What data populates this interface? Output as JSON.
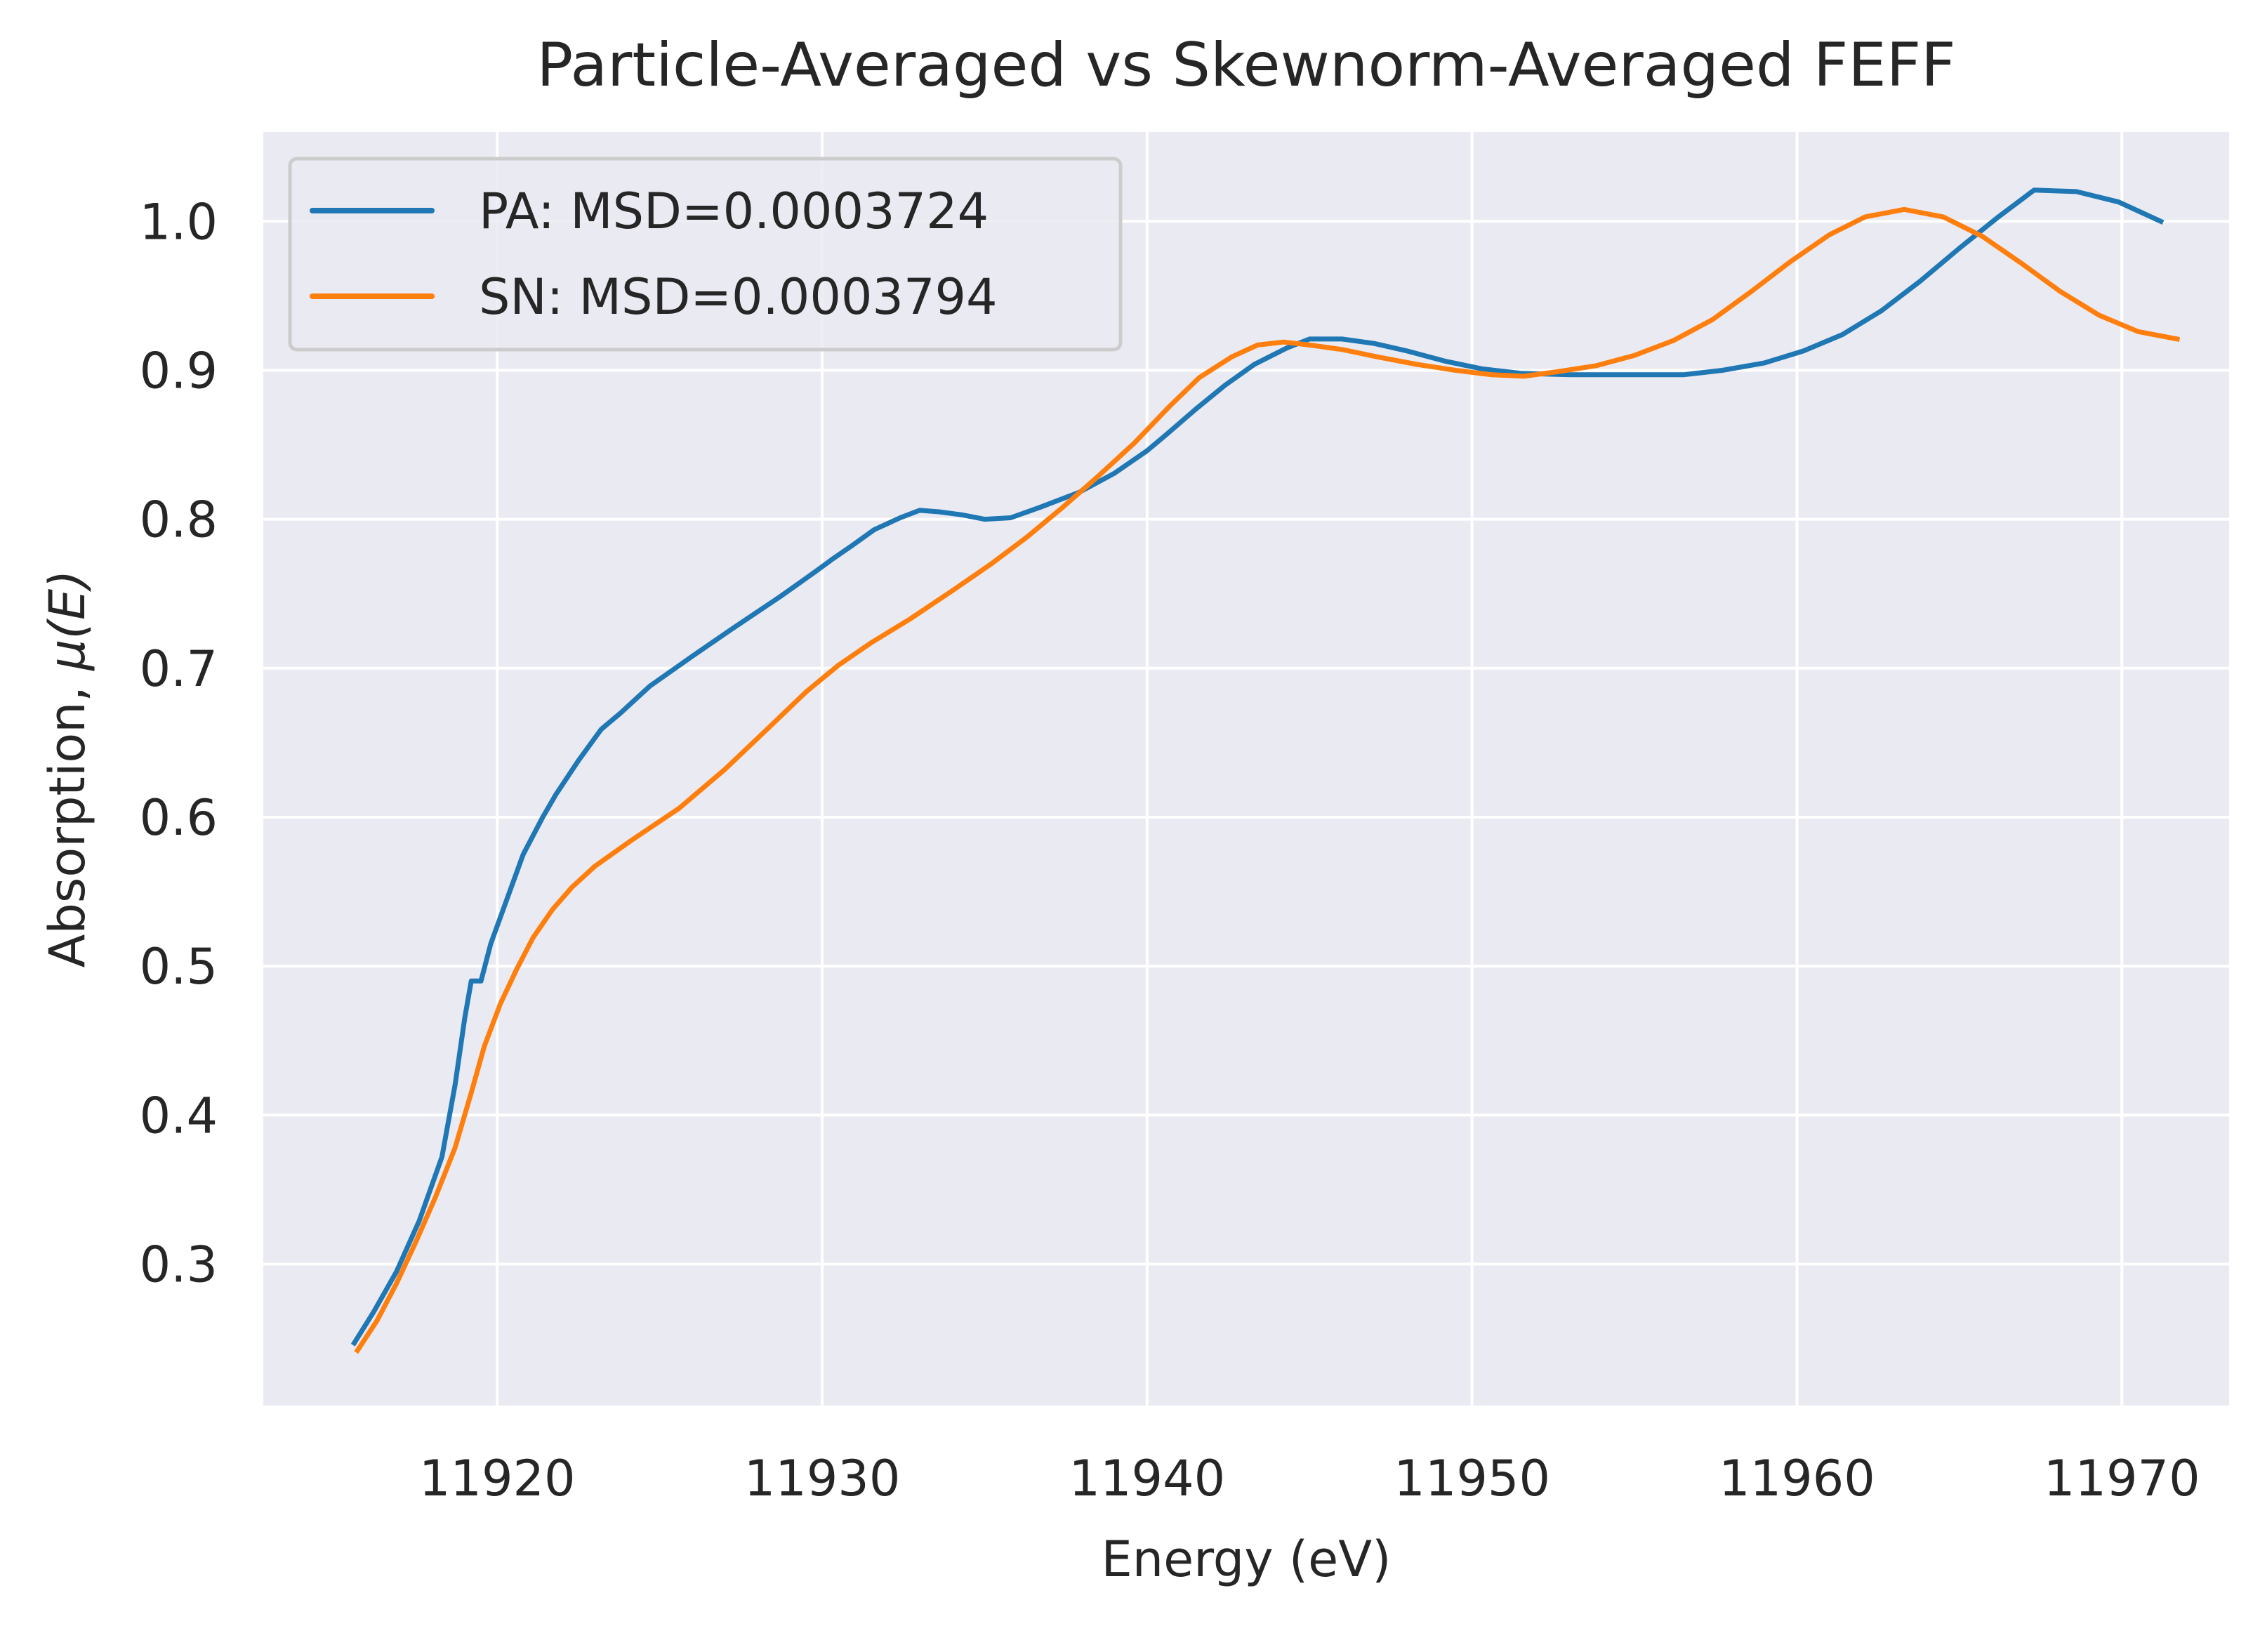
{
  "chart_data": {
    "type": "line",
    "title": "Particle-Averaged vs Skewnorm-Averaged FEFF",
    "xlabel": "Energy (eV)",
    "ylabel_prefix": "Absorption, ",
    "ylabel_math": "μ(E)",
    "xlim": [
      11912.8,
      11973.3
    ],
    "ylim": [
      0.205,
      1.06
    ],
    "xticks": [
      11920,
      11930,
      11940,
      11950,
      11960,
      11970
    ],
    "xtick_labels": [
      "11920",
      "11930",
      "11940",
      "11950",
      "11960",
      "11970"
    ],
    "yticks": [
      0.3,
      0.4,
      0.5,
      0.6,
      0.7,
      0.8,
      0.9,
      1.0
    ],
    "ytick_labels": [
      "0.3",
      "0.4",
      "0.5",
      "0.6",
      "0.7",
      "0.8",
      "0.9",
      "1.0"
    ],
    "grid": true,
    "legend_position": "upper-left",
    "series": [
      {
        "name": "PA: MSD=0.0003724",
        "color": "#1f77b4",
        "points": [
          [
            11915.6,
            0.247
          ],
          [
            11916.2,
            0.268
          ],
          [
            11916.9,
            0.295
          ],
          [
            11917.6,
            0.329
          ],
          [
            11918.3,
            0.372
          ],
          [
            11918.7,
            0.42
          ],
          [
            11919.0,
            0.465
          ],
          [
            11919.2,
            0.49
          ],
          [
            11919.5,
            0.49
          ],
          [
            11919.8,
            0.515
          ],
          [
            11920.3,
            0.545
          ],
          [
            11920.8,
            0.575
          ],
          [
            11921.4,
            0.6
          ],
          [
            11921.8,
            0.615
          ],
          [
            11922.5,
            0.638
          ],
          [
            11923.2,
            0.659
          ],
          [
            11923.8,
            0.67
          ],
          [
            11924.7,
            0.688
          ],
          [
            11926.0,
            0.708
          ],
          [
            11927.2,
            0.726
          ],
          [
            11928.7,
            0.748
          ],
          [
            11929.8,
            0.765
          ],
          [
            11930.3,
            0.773
          ],
          [
            11930.9,
            0.782
          ],
          [
            11931.6,
            0.793
          ],
          [
            11932.4,
            0.801
          ],
          [
            11933.0,
            0.806
          ],
          [
            11933.6,
            0.805
          ],
          [
            11934.3,
            0.803
          ],
          [
            11935.0,
            0.8
          ],
          [
            11935.8,
            0.801
          ],
          [
            11936.7,
            0.808
          ],
          [
            11937.9,
            0.818
          ],
          [
            11939.0,
            0.831
          ],
          [
            11940.0,
            0.846
          ],
          [
            11940.6,
            0.857
          ],
          [
            11941.5,
            0.874
          ],
          [
            11942.4,
            0.89
          ],
          [
            11943.3,
            0.904
          ],
          [
            11944.3,
            0.915
          ],
          [
            11945.0,
            0.921
          ],
          [
            11946.0,
            0.921
          ],
          [
            11947.0,
            0.918
          ],
          [
            11948.0,
            0.913
          ],
          [
            11949.2,
            0.906
          ],
          [
            11950.3,
            0.901
          ],
          [
            11951.5,
            0.898
          ],
          [
            11953.0,
            0.897
          ],
          [
            11955.0,
            0.897
          ],
          [
            11956.5,
            0.897
          ],
          [
            11957.7,
            0.9
          ],
          [
            11959.0,
            0.905
          ],
          [
            11960.2,
            0.913
          ],
          [
            11961.4,
            0.924
          ],
          [
            11962.6,
            0.94
          ],
          [
            11963.8,
            0.96
          ],
          [
            11965.0,
            0.982
          ],
          [
            11966.2,
            1.003
          ],
          [
            11967.3,
            1.021
          ],
          [
            11968.6,
            1.02
          ],
          [
            11969.9,
            1.013
          ],
          [
            11971.2,
            1.0
          ]
        ]
      },
      {
        "name": "SN: MSD=0.0003794",
        "color": "#ff7f0e",
        "points": [
          [
            11915.7,
            0.242
          ],
          [
            11916.3,
            0.262
          ],
          [
            11916.9,
            0.287
          ],
          [
            11917.5,
            0.315
          ],
          [
            11918.1,
            0.345
          ],
          [
            11918.7,
            0.378
          ],
          [
            11919.2,
            0.415
          ],
          [
            11919.6,
            0.446
          ],
          [
            11920.1,
            0.475
          ],
          [
            11920.6,
            0.498
          ],
          [
            11921.1,
            0.519
          ],
          [
            11921.7,
            0.538
          ],
          [
            11922.3,
            0.553
          ],
          [
            11923.0,
            0.567
          ],
          [
            11924.1,
            0.584
          ],
          [
            11925.6,
            0.606
          ],
          [
            11927.0,
            0.632
          ],
          [
            11928.4,
            0.661
          ],
          [
            11929.5,
            0.684
          ],
          [
            11930.5,
            0.702
          ],
          [
            11931.5,
            0.717
          ],
          [
            11932.7,
            0.733
          ],
          [
            11934.0,
            0.752
          ],
          [
            11935.2,
            0.77
          ],
          [
            11936.3,
            0.788
          ],
          [
            11937.4,
            0.808
          ],
          [
            11938.5,
            0.829
          ],
          [
            11939.6,
            0.851
          ],
          [
            11940.7,
            0.876
          ],
          [
            11941.6,
            0.895
          ],
          [
            11942.6,
            0.909
          ],
          [
            11943.4,
            0.917
          ],
          [
            11944.2,
            0.919
          ],
          [
            11945.0,
            0.917
          ],
          [
            11946.0,
            0.914
          ],
          [
            11947.1,
            0.909
          ],
          [
            11948.3,
            0.904
          ],
          [
            11949.5,
            0.9
          ],
          [
            11950.6,
            0.897
          ],
          [
            11951.6,
            0.896
          ],
          [
            11952.6,
            0.899
          ],
          [
            11953.8,
            0.903
          ],
          [
            11955.0,
            0.91
          ],
          [
            11956.2,
            0.92
          ],
          [
            11957.4,
            0.934
          ],
          [
            11958.6,
            0.953
          ],
          [
            11959.8,
            0.973
          ],
          [
            11961.0,
            0.991
          ],
          [
            11962.1,
            1.003
          ],
          [
            11963.3,
            1.008
          ],
          [
            11964.5,
            1.003
          ],
          [
            11965.7,
            0.99
          ],
          [
            11966.9,
            0.972
          ],
          [
            11968.1,
            0.953
          ],
          [
            11969.3,
            0.937
          ],
          [
            11970.5,
            0.926
          ],
          [
            11971.7,
            0.921
          ]
        ]
      }
    ]
  }
}
